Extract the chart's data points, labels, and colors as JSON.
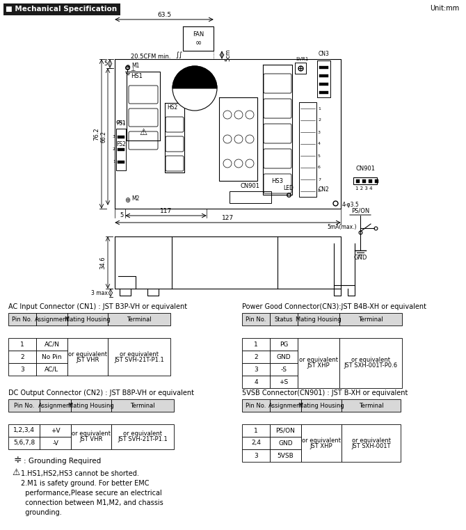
{
  "title": "Mechanical Specification",
  "unit": "Unit:mm",
  "bg_color": "#ffffff",
  "line_color": "#000000",
  "title_bg": "#1a1a1a",
  "title_text_color": "#ffffff",
  "ac_table_title": "AC Input Connector (CN1) : JST B3P-VH or equivalent",
  "ac_table_headers": [
    "Pin No.",
    "Assignment",
    "Mating Housing",
    "Terminal"
  ],
  "ac_table_rows": [
    [
      "1",
      "AC/N",
      "",
      ""
    ],
    [
      "2",
      "No Pin",
      "JST VHR\nor equivalent",
      "JST SVH-21T-P1.1\nor equivalent"
    ],
    [
      "3",
      "AC/L",
      "",
      ""
    ]
  ],
  "dc_table_title": "DC Output Connector (CN2) : JST B8P-VH or equivalent",
  "dc_table_headers": [
    "Pin No.",
    "Assignment",
    "Mating Housing",
    "Terminal"
  ],
  "dc_table_rows": [
    [
      "1,2,3,4",
      "+V",
      "JST VHR\nor equivalent",
      "JST SVH-21T-P1.1\nor equivalent"
    ],
    [
      "5,6,7,8",
      "-V",
      "",
      ""
    ]
  ],
  "pg_table_title": "Power Good Connector(CN3):JST B4B-XH or equivalent",
  "pg_table_headers": [
    "Pin No.",
    "Status",
    "Mating Housing",
    "Terminal"
  ],
  "pg_table_rows": [
    [
      "1",
      "PG",
      "",
      ""
    ],
    [
      "2",
      "GND",
      "JST XHP\nor equivalent",
      "JST SXH-001T-P0.6\nor equivalent"
    ],
    [
      "3",
      "-S",
      "",
      ""
    ],
    [
      "4",
      "+S",
      "",
      ""
    ]
  ],
  "vsb_table_title": "5VSB Connector(CN901) : JST B-XH or equivalent",
  "vsb_table_headers": [
    "Pin No.",
    "Assignment",
    "Mating Housing",
    "Terminal"
  ],
  "vsb_table_rows": [
    [
      "1",
      "PS/ON",
      "",
      ""
    ],
    [
      "2,4",
      "GND",
      "JST XHP\nor equivalent",
      "JST SXH-001T\nor equivalent"
    ],
    [
      "3",
      "5VSB",
      "",
      ""
    ]
  ],
  "ground_note": "± : Grounding Required",
  "warning_notes": [
    "1.HS1,HS2,HS3 cannot be shorted.",
    "2.M1 is safety ground. For better EMC",
    "  performance,Please secure an electrical",
    "  connection between M1,M2, and chassis",
    "  grounding."
  ]
}
